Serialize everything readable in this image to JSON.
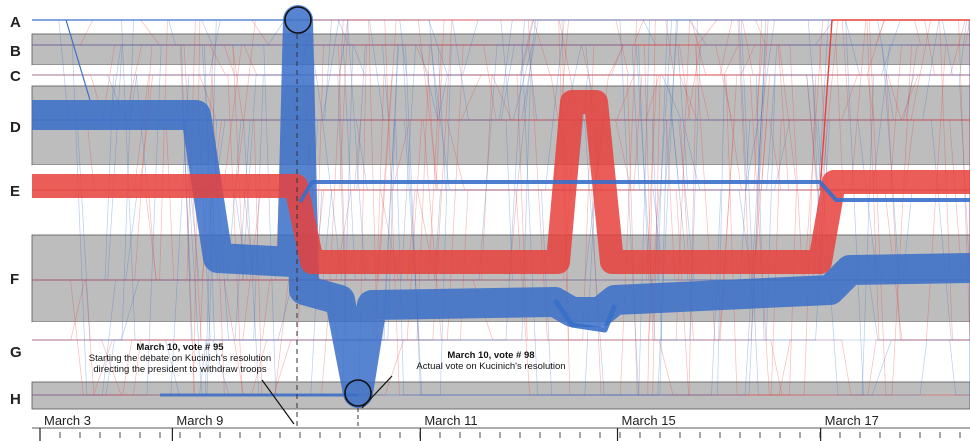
{
  "chart_data": {
    "type": "line",
    "title": "",
    "rows": [
      "A",
      "B",
      "C",
      "D",
      "E",
      "F",
      "G",
      "H"
    ],
    "date_labels": [
      {
        "label": "March 3",
        "vote": 1
      },
      {
        "label": "March 9",
        "vote": 48
      },
      {
        "label": "March 11",
        "vote": 131
      },
      {
        "label": "March 15",
        "vote": 197
      },
      {
        "label": "March 17",
        "vote": 265
      }
    ],
    "vote_range": [
      1,
      315
    ],
    "annotations": [
      {
        "title": "March 10, vote # 95",
        "lines": [
          "Starting the debate on Kucinich's resolution",
          "directing the president to withdraw troops"
        ],
        "vote": 95
      },
      {
        "title": "March 10, vote # 98",
        "lines": [
          "Actual vote on Kucinich's resolution"
        ],
        "vote": 98
      }
    ],
    "series": [
      {
        "name": "blue_main",
        "color": "#3a6fc9"
      },
      {
        "name": "red_main",
        "color": "#e8413c"
      }
    ],
    "colors": {
      "band_shaded": "#bdbdbd",
      "band_white": "#ffffff",
      "blue": "#3a6fc9",
      "red": "#e8413c"
    }
  }
}
